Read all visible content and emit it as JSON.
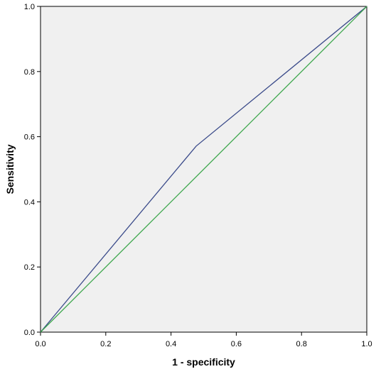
{
  "chart_data": {
    "type": "line",
    "title": "",
    "xlabel": "1 - specificity",
    "ylabel": "Sensitivity",
    "xlim": [
      0.0,
      1.0
    ],
    "ylim": [
      0.0,
      1.0
    ],
    "x_ticks": [
      "0.0",
      "0.2",
      "0.4",
      "0.6",
      "0.8",
      "1.0"
    ],
    "y_ticks": [
      "0.0",
      "0.2",
      "0.4",
      "0.6",
      "0.8",
      "1.0"
    ],
    "grid": false,
    "legend": "none",
    "plot_background": "#f0f0f0",
    "series": [
      {
        "color": "#3b4b8a",
        "x": [
          0.0,
          0.477,
          1.0
        ],
        "y": [
          0.0,
          0.571,
          1.0
        ]
      },
      {
        "color": "#3aa64a",
        "x": [
          0.0,
          1.0
        ],
        "y": [
          0.0,
          1.0
        ]
      }
    ]
  }
}
